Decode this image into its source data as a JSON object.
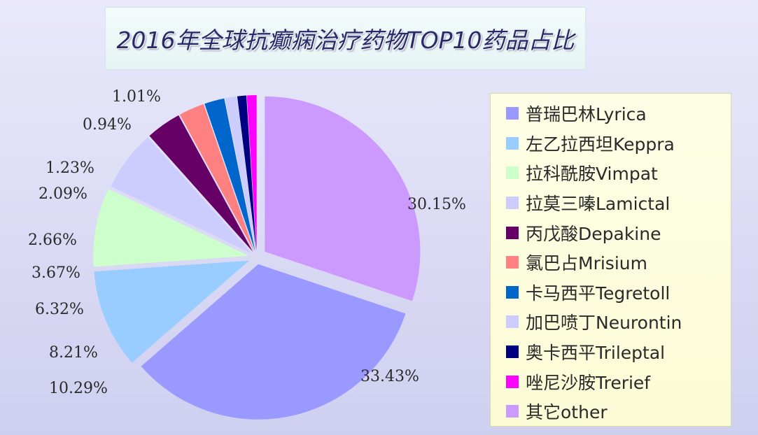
{
  "title": "2016年全球抗癫痫治疗药物TOP10药品占比",
  "legend_placement": "right",
  "chart_data": {
    "type": "pie",
    "title": "2016年全球抗癫痫治疗药物TOP10药品占比",
    "slices": [
      {
        "name": "其它other",
        "value": 30.15,
        "label": "30.15%",
        "color": "#cc99ff"
      },
      {
        "name": "普瑞巴林Lyrica",
        "value": 33.43,
        "label": "33.43%",
        "color": "#9999ff"
      },
      {
        "name": "左乙拉西坦Keppra",
        "value": 10.29,
        "label": "10.29%",
        "color": "#99ccff"
      },
      {
        "name": "拉科酰胺Vimpat",
        "value": 8.21,
        "label": "8.21%",
        "color": "#ccffcc"
      },
      {
        "name": "拉莫三嗪Lamictal",
        "value": 6.32,
        "label": "6.32%",
        "color": "#ccccff"
      },
      {
        "name": "丙戊酸Depakine",
        "value": 3.67,
        "label": "3.67%",
        "color": "#660066"
      },
      {
        "name": "氯巴占Mrisium",
        "value": 2.66,
        "label": "2.66%",
        "color": "#ff8080"
      },
      {
        "name": "卡马西平Tegretoll",
        "value": 2.09,
        "label": "2.09%",
        "color": "#0066cc"
      },
      {
        "name": "加巴喷丁Neurontin",
        "value": 1.23,
        "label": "1.23%",
        "color": "#ccccff"
      },
      {
        "name": "奥卡西平Trileptal",
        "value": 0.94,
        "label": "0.94%",
        "color": "#000080"
      },
      {
        "name": "唑尼沙胺Trerief",
        "value": 1.01,
        "label": "1.01%",
        "color": "#ff00ff"
      }
    ],
    "legend": [
      {
        "label": "普瑞巴林Lyrica",
        "color": "#9999ff"
      },
      {
        "label": "左乙拉西坦Keppra",
        "color": "#99ccff"
      },
      {
        "label": "拉科酰胺Vimpat",
        "color": "#ccffcc"
      },
      {
        "label": "拉莫三嗪Lamictal",
        "color": "#ccccff"
      },
      {
        "label": "丙戊酸Depakine",
        "color": "#660066"
      },
      {
        "label": "氯巴占Mrisium",
        "color": "#ff8080"
      },
      {
        "label": "卡马西平Tegretoll",
        "color": "#0066cc"
      },
      {
        "label": "加巴喷丁Neurontin",
        "color": "#ccccff"
      },
      {
        "label": "奥卡西平Trileptal",
        "color": "#000080"
      },
      {
        "label": "唑尼沙胺Trerief",
        "color": "#ff00ff"
      },
      {
        "label": "其它other",
        "color": "#cc99ff"
      }
    ]
  }
}
